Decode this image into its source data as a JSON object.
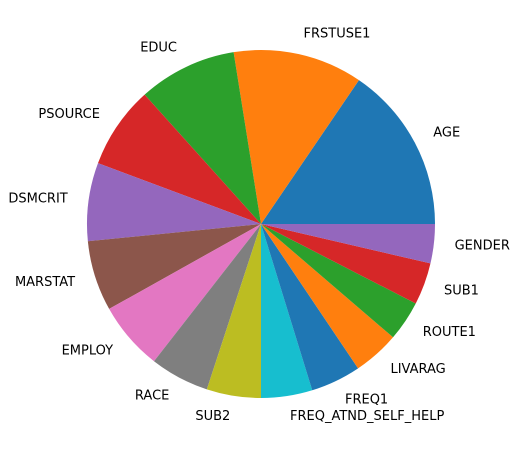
{
  "chart_data": {
    "type": "pie",
    "title": "",
    "start_angle_deg": 0,
    "direction": "counterclockwise",
    "slices": [
      {
        "label": "AGE",
        "value": 16.6,
        "color": "#1f77b4"
      },
      {
        "label": "FRSTUSE1",
        "value": 12.9,
        "color": "#ff7f0e"
      },
      {
        "label": "EDUC",
        "value": 9.8,
        "color": "#2ca02c"
      },
      {
        "label": "PSOURCE",
        "value": 8.2,
        "color": "#d62728"
      },
      {
        "label": "DSMCRIT",
        "value": 7.8,
        "color": "#9467bd"
      },
      {
        "label": "MARSTAT",
        "value": 7.0,
        "color": "#8c564b"
      },
      {
        "label": "EMPLOY",
        "value": 6.8,
        "color": "#e377c2"
      },
      {
        "label": "RACE",
        "value": 5.9,
        "color": "#7f7f7f"
      },
      {
        "label": "SUB2",
        "value": 5.4,
        "color": "#bcbd22"
      },
      {
        "label": "FREQ_ATND_SELF_HELP",
        "value": 5.1,
        "color": "#17becf"
      },
      {
        "label": "FREQ1",
        "value": 5.0,
        "color": "#1f77b4"
      },
      {
        "label": "LIVARAG",
        "value": 4.6,
        "color": "#ff7f0e"
      },
      {
        "label": "ROUTE1",
        "value": 4.0,
        "color": "#2ca02c"
      },
      {
        "label": "SUB1",
        "value": 4.2,
        "color": "#d62728"
      },
      {
        "label": "GENDER",
        "value": 3.9,
        "color": "#9467bd"
      }
    ]
  }
}
